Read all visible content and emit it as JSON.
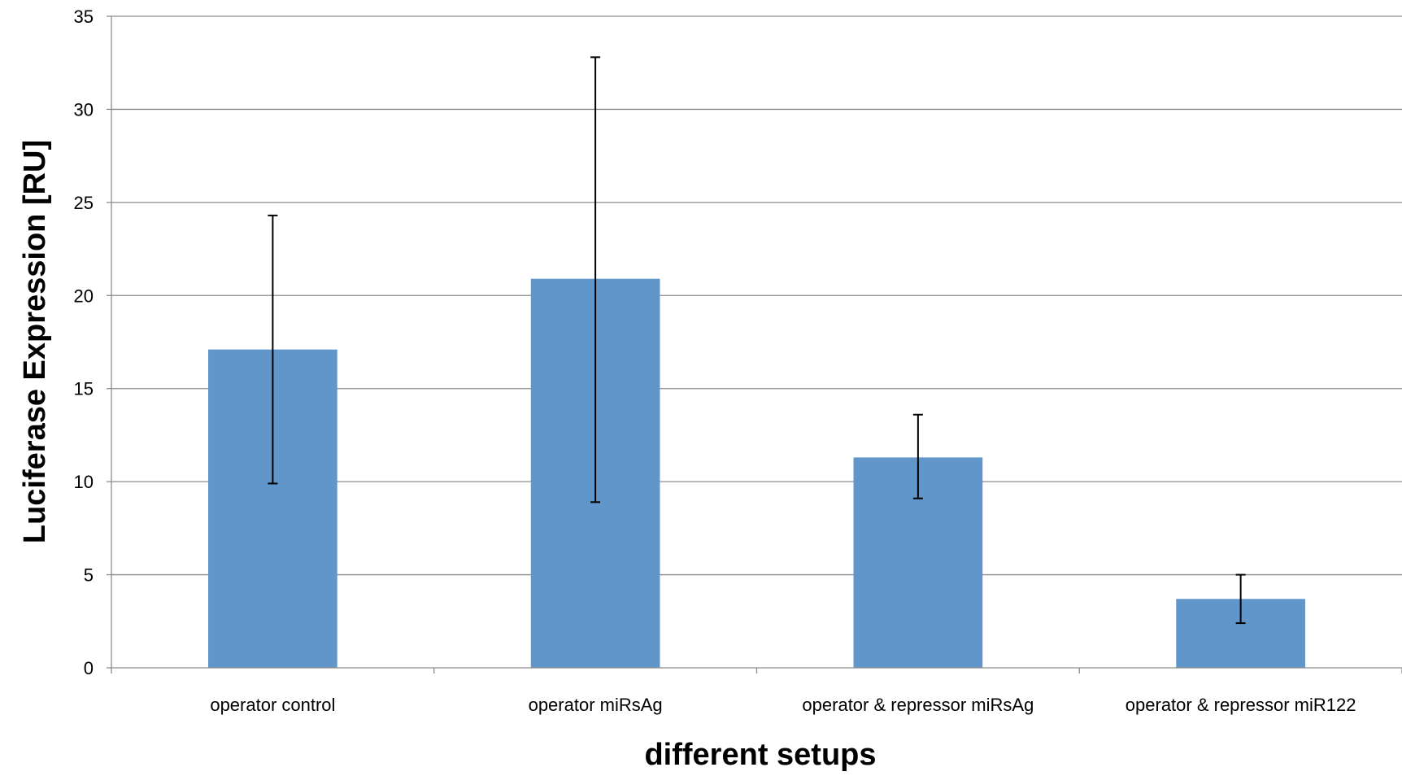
{
  "chart_data": {
    "type": "bar",
    "title": "",
    "xlabel": "different setups",
    "ylabel": "Luciferase Expression [RU]",
    "ylim": [
      0,
      35
    ],
    "yticks": [
      0,
      5,
      10,
      15,
      20,
      25,
      30,
      35
    ],
    "grid": true,
    "categories": [
      "operator control",
      "operator miRsAg",
      "operator & repressor miRsAg",
      "operator & repressor miR122"
    ],
    "series": [
      {
        "values": [
          17.1,
          20.9,
          11.3,
          3.7
        ],
        "error_low": [
          9.9,
          8.9,
          9.1,
          2.4
        ],
        "error_high": [
          24.3,
          32.8,
          13.6,
          5.0
        ]
      }
    ],
    "colors": {
      "bar": "#6096c9",
      "grid": "#8c8c8c",
      "error": "#000000"
    }
  }
}
